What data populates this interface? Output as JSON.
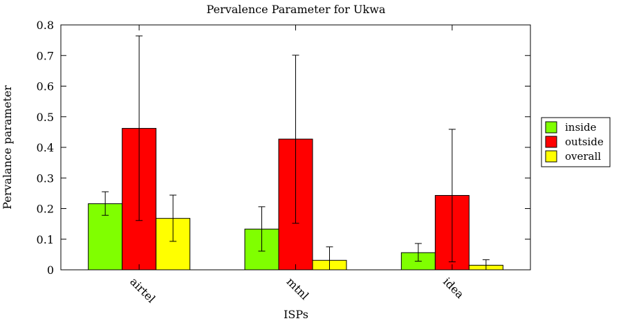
{
  "chart_data": {
    "type": "bar",
    "title": "Pervalence Parameter for Ukwa",
    "xlabel": "ISPs",
    "ylabel": "Pervalance parameter",
    "ylim": [
      0,
      0.8
    ],
    "yticks": [
      0,
      0.1,
      0.2,
      0.3,
      0.4,
      0.5,
      0.6,
      0.7,
      0.8
    ],
    "ytick_labels": [
      "0",
      "0.1",
      "0.2",
      "0.3",
      "0.4",
      "0.5",
      "0.6",
      "0.7",
      "0.8"
    ],
    "categories": [
      "airtel",
      "mtnl",
      "idea"
    ],
    "grid": false,
    "legend_position": "right",
    "series": [
      {
        "name": "inside",
        "color": "#80ff00",
        "values": [
          0.216,
          0.133,
          0.056
        ],
        "error_low": [
          0.178,
          0.061,
          0.028
        ],
        "error_high": [
          0.255,
          0.206,
          0.086
        ]
      },
      {
        "name": "outside",
        "color": "#ff0000",
        "values": [
          0.462,
          0.427,
          0.243
        ],
        "error_low": [
          0.161,
          0.152,
          0.026
        ],
        "error_high": [
          0.764,
          0.701,
          0.459
        ]
      },
      {
        "name": "overall",
        "color": "#ffff00",
        "values": [
          0.168,
          0.031,
          0.015
        ],
        "error_low": [
          0.093,
          0.0,
          0.0
        ],
        "error_high": [
          0.244,
          0.075,
          0.033
        ]
      }
    ]
  }
}
